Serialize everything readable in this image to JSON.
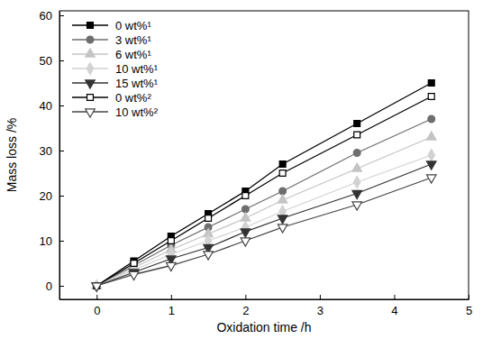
{
  "chart_data": {
    "type": "line",
    "x_label": "Oxidation time /h",
    "y_label": "Mass loss /%",
    "x": [
      0,
      0.5,
      1,
      1.5,
      2,
      2.5,
      3.5,
      4.5
    ],
    "xlim": [
      -0.5,
      5
    ],
    "xticks": [
      0,
      1,
      2,
      3,
      4,
      5
    ],
    "ylim": [
      -3,
      61
    ],
    "yticks": [
      0,
      10,
      20,
      30,
      40,
      50,
      60
    ],
    "grid": false,
    "legend": "upper left",
    "series": [
      {
        "name": "0 wt%¹",
        "color": "#000000",
        "marker": "square",
        "values": [
          0,
          5.5,
          11,
          16,
          21,
          27,
          36,
          45
        ]
      },
      {
        "name": "3 wt%¹",
        "color": "#6e6e6e",
        "marker": "circle",
        "values": [
          0,
          4.5,
          9,
          13,
          17,
          21,
          29.5,
          37
        ]
      },
      {
        "name": "6 wt%¹",
        "color": "#c4c4c4",
        "marker": "triangle",
        "values": [
          0,
          4,
          8,
          11.5,
          15,
          19,
          26,
          33
        ]
      },
      {
        "name": "10 wt%¹",
        "color": "#d2d2d2",
        "marker": "diamond",
        "values": [
          0,
          3.5,
          7,
          10,
          13,
          16.5,
          23,
          29
        ]
      },
      {
        "name": "15 wt%¹",
        "color": "#333333",
        "marker": "triangle-down",
        "values": [
          0,
          3,
          6,
          8.5,
          12,
          15,
          20.5,
          27
        ]
      },
      {
        "name": "0 wt%²",
        "color": "#000000",
        "marker": "square-open",
        "values": [
          0,
          5,
          10,
          15,
          20,
          25,
          33.5,
          42
        ]
      },
      {
        "name": "10 wt%²",
        "color": "#444444",
        "marker": "triangle-down-open",
        "values": [
          0,
          2.5,
          4.5,
          7,
          10,
          13,
          18,
          24
        ]
      }
    ]
  }
}
